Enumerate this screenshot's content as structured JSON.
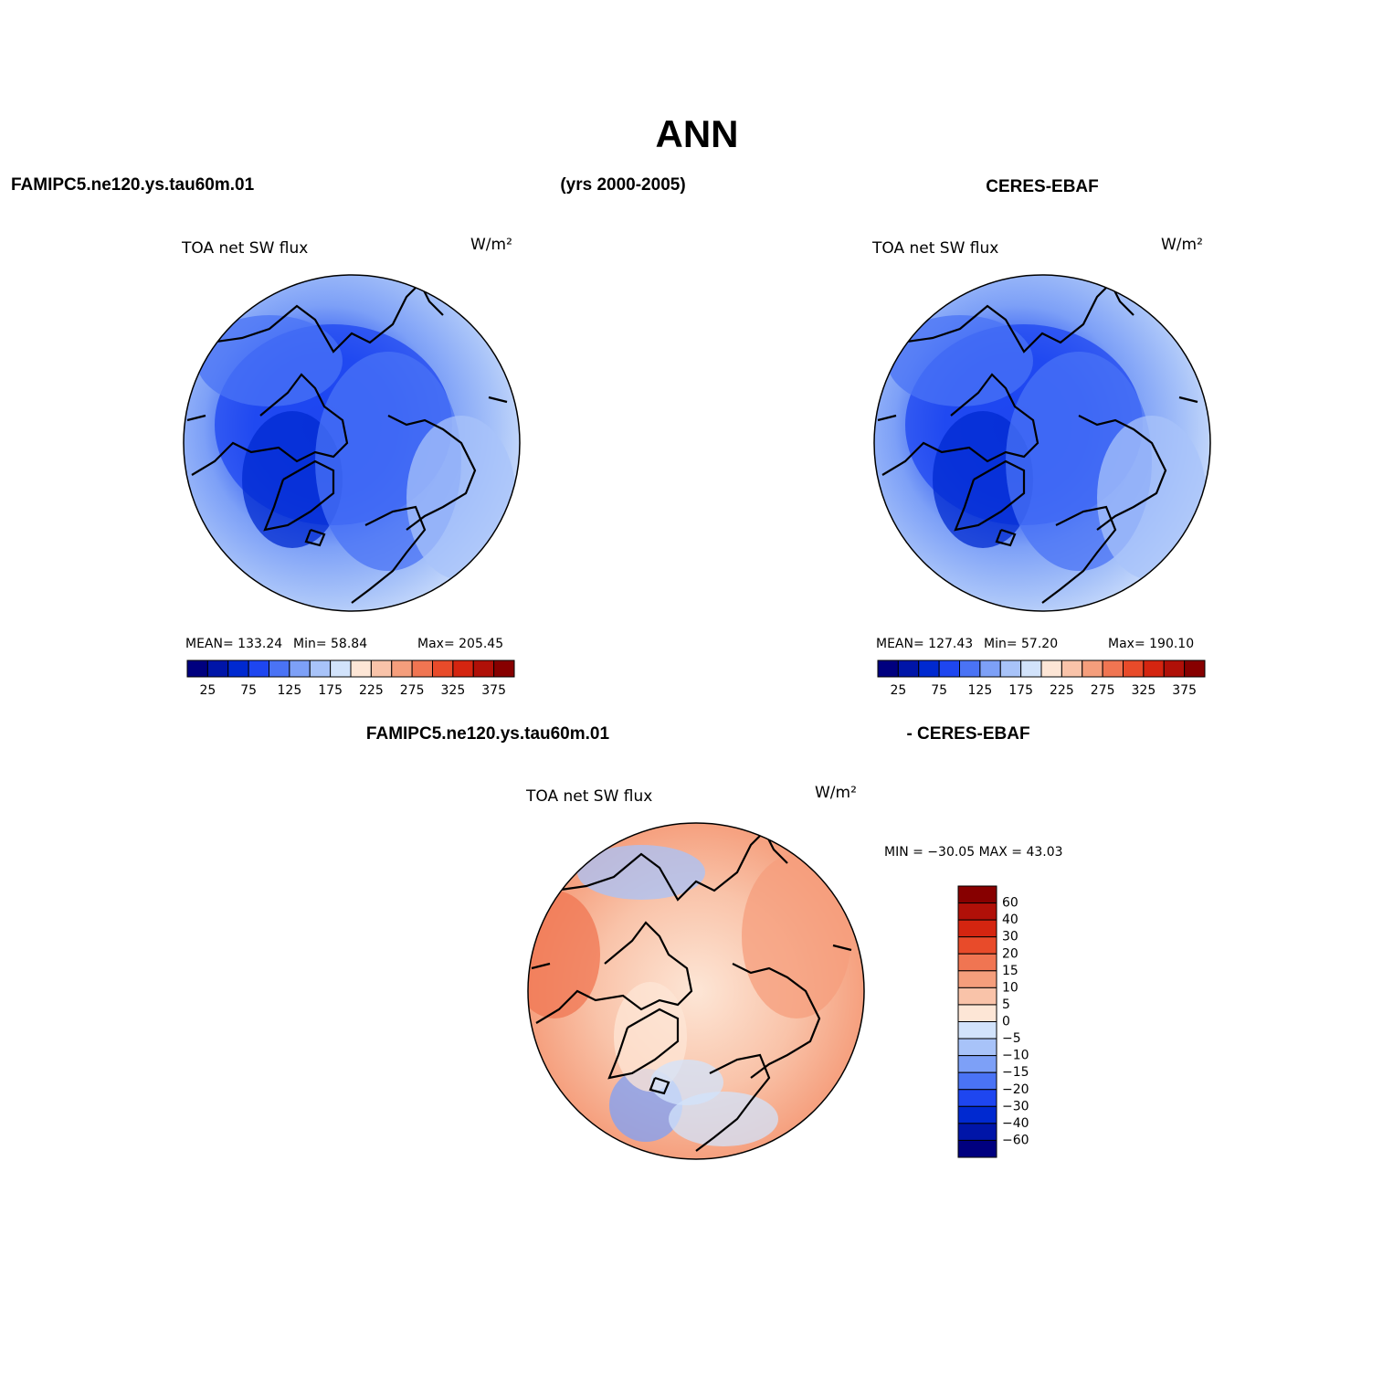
{
  "title": "ANN",
  "header": {
    "left": "FAMIPC5.ne120.ys.tau60m.01",
    "center": "(yrs 2000-2005)",
    "right": "CERES-EBAF"
  },
  "diff_header": {
    "left": "FAMIPC5.ne120.ys.tau60m.01",
    "right": "- CERES-EBAF"
  },
  "panels": [
    {
      "label": "TOA net SW flux",
      "units": "W/m²",
      "stats": [
        "MEAN= 133.24",
        "Min=  58.84",
        "Max= 205.45"
      ],
      "colorbar": "horizontal",
      "scheme": "blue",
      "colorbar_labels": [
        "25",
        "75",
        "125",
        "175",
        "225",
        "275",
        "325",
        "375"
      ],
      "colors": [
        "#00007f",
        "#0015a8",
        "#0029d0",
        "#1e46f0",
        "#4a73f5",
        "#7da0f7",
        "#a8c3f9",
        "#d2e3fb",
        "#fde6d6",
        "#f9c3a9",
        "#f59e7c",
        "#f07552",
        "#e84b2a",
        "#d42510",
        "#b01008",
        "#870000"
      ]
    },
    {
      "label": "TOA net SW flux",
      "units": "W/m²",
      "stats": [
        "MEAN= 127.43",
        "Min=  57.20",
        "Max= 190.10"
      ],
      "colorbar": "horizontal",
      "scheme": "blue",
      "colorbar_labels": [
        "25",
        "75",
        "125",
        "175",
        "225",
        "275",
        "325",
        "375"
      ],
      "colors": [
        "#00007f",
        "#0015a8",
        "#0029d0",
        "#1e46f0",
        "#4a73f5",
        "#7da0f7",
        "#a8c3f9",
        "#d2e3fb",
        "#fde6d6",
        "#f9c3a9",
        "#f59e7c",
        "#f07552",
        "#e84b2a",
        "#d42510",
        "#b01008",
        "#870000"
      ]
    },
    {
      "label": "TOA net SW flux",
      "units": "W/m²",
      "stats": [
        "MIN = −30.05 MAX =  43.03"
      ],
      "colorbar": "vertical",
      "scheme": "diff",
      "colorbar_labels": [
        "60",
        "40",
        "30",
        "20",
        "15",
        "10",
        "5",
        "0",
        "−5",
        "−10",
        "−15",
        "−20",
        "−30",
        "−40",
        "−60"
      ],
      "colors": [
        "#870000",
        "#b01008",
        "#d42510",
        "#e84b2a",
        "#f07552",
        "#f59e7c",
        "#f9c3a9",
        "#fde6d6",
        "#d2e3fb",
        "#a8c3f9",
        "#7da0f7",
        "#4a73f5",
        "#1e46f0",
        "#0029d0",
        "#0015a8",
        "#00007f"
      ]
    }
  ]
}
